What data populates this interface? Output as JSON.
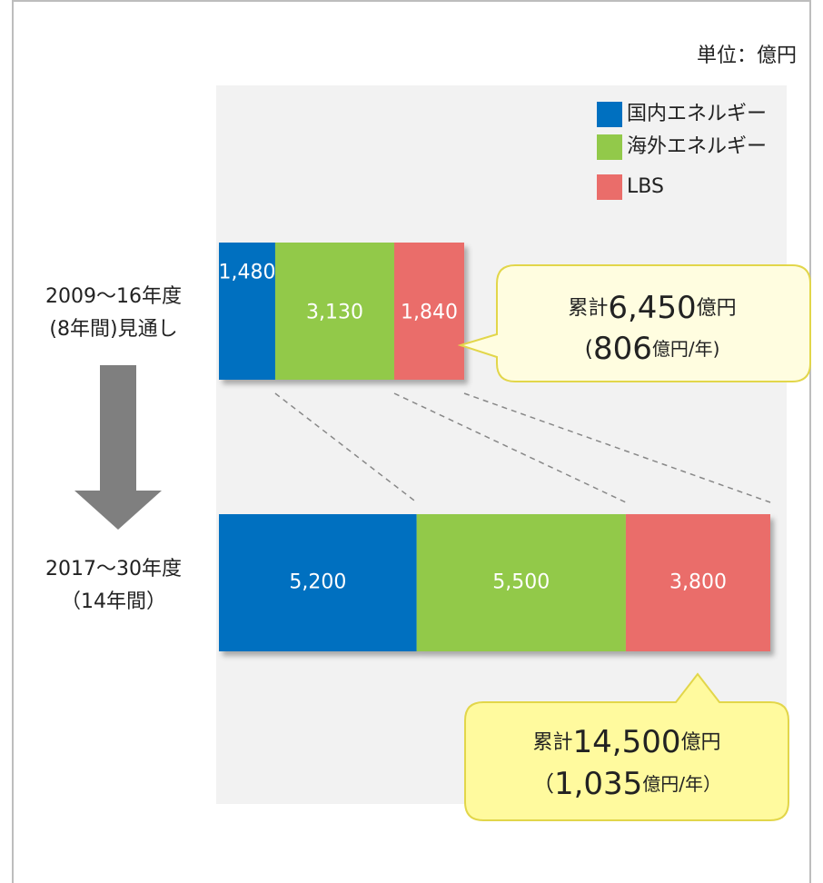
{
  "chart_data": {
    "type": "bar",
    "orientation": "horizontal",
    "stacked": true,
    "unit_label": "単位：億円",
    "categories": [
      [
        "2009～16年度",
        "(8年間)見通し"
      ],
      [
        "2017～30年度",
        "（14年間）"
      ]
    ],
    "series": [
      {
        "name": "国内エネルギー",
        "color": "#0070c0",
        "values": [
          1480,
          5200
        ],
        "value_labels": [
          "1,480",
          "5,200"
        ]
      },
      {
        "name": "海外エネルギー",
        "color": "#92c94a",
        "values": [
          3130,
          5500
        ],
        "value_labels": [
          "3,130",
          "5,500"
        ]
      },
      {
        "name": "LBS",
        "color": "#ea6d6a",
        "values": [
          1840,
          3800
        ],
        "value_labels": [
          "1,840",
          "3,800"
        ]
      }
    ],
    "legend": "top-right",
    "annotations": [
      {
        "line1": [
          "累計",
          "6,450",
          "億円"
        ],
        "line2": [
          "(",
          "806",
          "億円/年)"
        ]
      },
      {
        "line1": [
          "累計",
          "14,500",
          "億円"
        ],
        "line2": [
          "（",
          "1,035",
          "億円/年）"
        ]
      }
    ]
  }
}
